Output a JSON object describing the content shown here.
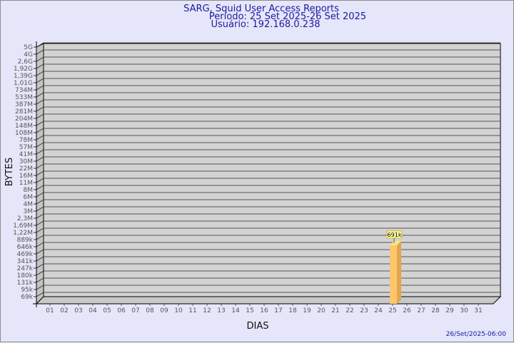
{
  "chart_data": {
    "type": "bar",
    "title": "SARG, Squid User Access Reports",
    "subtitle": [
      "Período: 25 Set 2025-26 Set 2025",
      "Usuário: 192.168.0.238"
    ],
    "xlabel": "DIAS",
    "ylabel": "BYTES",
    "y_scale": "log",
    "y_ticks": [
      "5G",
      "4G",
      "2,6G",
      "1,92G",
      "1,39G",
      "1,01G",
      "734M",
      "533M",
      "387M",
      "281M",
      "204M",
      "148M",
      "108M",
      "78M",
      "57M",
      "41M",
      "30M",
      "22M",
      "16M",
      "11M",
      "8M",
      "6M",
      "4M",
      "3M",
      "2,3M",
      "1,69M",
      "1,22M",
      "889k",
      "646k",
      "469k",
      "341k",
      "247k",
      "180k",
      "131k",
      "95k",
      "69k"
    ],
    "categories": [
      "01",
      "02",
      "03",
      "04",
      "05",
      "06",
      "07",
      "08",
      "09",
      "10",
      "11",
      "12",
      "13",
      "14",
      "15",
      "16",
      "17",
      "18",
      "19",
      "20",
      "21",
      "22",
      "23",
      "24",
      "25",
      "26",
      "27",
      "28",
      "29",
      "30",
      "31"
    ],
    "bars": [
      {
        "day": "25",
        "value": 691000,
        "label": "691k"
      }
    ],
    "grid": true,
    "colors": {
      "background": "#e6e6fa",
      "wall": "#d3d3d3",
      "bar": "#ffc56c",
      "bar_side": "#e0a64e",
      "bar_top": "#ffe28e",
      "title": "#1a1aa0"
    },
    "footer": "26/Set/2025-06:00"
  }
}
